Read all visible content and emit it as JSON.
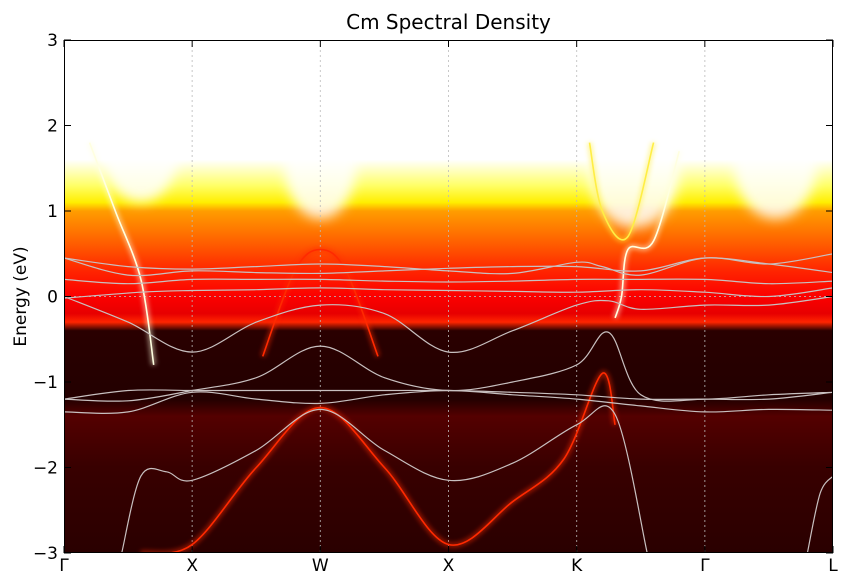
{
  "chart_data": {
    "type": "heatmap",
    "title": "Cm Spectral Density",
    "xlabel": "",
    "ylabel": "Energy (eV)",
    "ylim": [
      -3,
      3
    ],
    "yticks": [
      -3,
      -2,
      -1,
      0,
      1,
      2,
      3
    ],
    "ytick_labels": [
      "−3",
      "−2",
      "−1",
      "0",
      "1",
      "2",
      "3"
    ],
    "xticks": [
      {
        "pos": 0.0,
        "label": "Γ"
      },
      {
        "pos": 1.0,
        "label": "X"
      },
      {
        "pos": 2.0,
        "label": "W"
      },
      {
        "pos": 3.0,
        "label": "X"
      },
      {
        "pos": 4.0,
        "label": "K"
      },
      {
        "pos": 5.0,
        "label": "Γ"
      },
      {
        "pos": 6.0,
        "label": "L"
      }
    ],
    "xlim": [
      0,
      6
    ],
    "fermi_level": 0,
    "grid": "vertical dotted at high-symmetry points; horizontal dotted at E=0",
    "colormap": "hot (black → red → yellow → white)",
    "spectral_intensity_by_energy": [
      {
        "e": 3.0,
        "i": 1.0
      },
      {
        "e": 1.6,
        "i": 1.0
      },
      {
        "e": 1.3,
        "i": 0.85
      },
      {
        "e": 1.1,
        "i": 0.72
      },
      {
        "e": 1.0,
        "i": 0.6
      },
      {
        "e": 0.6,
        "i": 0.5
      },
      {
        "e": 0.3,
        "i": 0.42
      },
      {
        "e": 0.0,
        "i": 0.36
      },
      {
        "e": -0.2,
        "i": 0.33
      },
      {
        "e": -0.3,
        "i": 0.42
      },
      {
        "e": -0.4,
        "i": 0.06
      },
      {
        "e": -1.2,
        "i": 0.05
      },
      {
        "e": -1.4,
        "i": 0.12
      },
      {
        "e": -1.7,
        "i": 0.1
      },
      {
        "e": -2.0,
        "i": 0.08
      },
      {
        "e": -3.0,
        "i": 0.06
      }
    ],
    "lda_bands": [
      {
        "x": [
          0,
          0.6,
          1.0,
          1.5,
          2.0,
          2.5,
          3.0,
          3.5,
          4.0,
          4.5,
          5.0,
          5.5,
          6.0
        ],
        "y": [
          -0.02,
          0.05,
          0.07,
          0.08,
          0.1,
          0.08,
          0.07,
          0.06,
          0.05,
          0.08,
          0.05,
          0.0,
          0.1
        ]
      },
      {
        "x": [
          0,
          0.5,
          1.0,
          1.5,
          2.0,
          2.5,
          3.0,
          3.5,
          4.0,
          4.4,
          5.0,
          5.5,
          6.0
        ],
        "y": [
          0.2,
          0.15,
          0.2,
          0.2,
          0.2,
          0.18,
          0.17,
          0.18,
          0.2,
          0.2,
          0.2,
          0.15,
          0.18
        ]
      },
      {
        "x": [
          0,
          0.5,
          1.0,
          1.5,
          2.0,
          2.5,
          3.0,
          3.5,
          4.0,
          4.5,
          5.0,
          5.5,
          6.0
        ],
        "y": [
          0.45,
          0.25,
          0.3,
          0.28,
          0.27,
          0.3,
          0.33,
          0.35,
          0.35,
          0.3,
          0.45,
          0.38,
          0.28
        ]
      },
      {
        "x": [
          0,
          0.5,
          1.0,
          1.5,
          2.0,
          2.5,
          3.0,
          3.5,
          4.0,
          4.2,
          4.5,
          5.0,
          5.5,
          6.0
        ],
        "y": [
          0.45,
          0.35,
          0.32,
          0.35,
          0.38,
          0.35,
          0.3,
          0.27,
          0.4,
          0.35,
          0.25,
          0.45,
          0.38,
          0.5
        ]
      },
      {
        "x": [
          0,
          0.5,
          1.0,
          1.5,
          2.0,
          2.5,
          3.0,
          3.5,
          4.0,
          4.25,
          4.5,
          5.0,
          5.5,
          6.0
        ],
        "y": [
          0.0,
          -0.3,
          -0.65,
          -0.3,
          -0.1,
          -0.2,
          -0.65,
          -0.4,
          -0.1,
          -0.05,
          -0.15,
          -0.1,
          -0.1,
          0.0
        ]
      },
      {
        "x": [
          0,
          0.5,
          1.0,
          1.5,
          2.0,
          2.5,
          3.0,
          3.5,
          4.0,
          4.25,
          4.5,
          5.0,
          5.5,
          6.0
        ],
        "y": [
          -1.2,
          -1.22,
          -1.1,
          -0.95,
          -0.58,
          -0.95,
          -1.1,
          -1.0,
          -0.8,
          -0.42,
          -1.15,
          -1.2,
          -1.15,
          -1.12
        ]
      },
      {
        "x": [
          0,
          0.5,
          1.0,
          1.5,
          2.0,
          2.5,
          3.0,
          3.5,
          4.0,
          4.5,
          5.0,
          5.5,
          6.0
        ],
        "y": [
          -1.2,
          -1.1,
          -1.1,
          -1.1,
          -1.1,
          -1.1,
          -1.1,
          -1.12,
          -1.15,
          -1.2,
          -1.2,
          -1.2,
          -1.12
        ]
      },
      {
        "x": [
          0,
          0.5,
          1.0,
          1.5,
          2.0,
          2.5,
          3.0,
          3.5,
          4.0,
          4.5,
          5.0,
          5.5,
          6.0
        ],
        "y": [
          -1.35,
          -1.35,
          -1.12,
          -1.2,
          -1.25,
          -1.15,
          -1.1,
          -1.15,
          -1.2,
          -1.28,
          -1.35,
          -1.32,
          -1.33
        ]
      },
      {
        "x": [
          0.45,
          0.6,
          0.8,
          1.0,
          1.5,
          2.0,
          2.5,
          3.0,
          3.5,
          4.0,
          4.3,
          4.55
        ],
        "y": [
          -3.0,
          -2.1,
          -2.05,
          -2.15,
          -1.8,
          -1.32,
          -1.8,
          -2.15,
          -1.95,
          -1.5,
          -1.38,
          -3.0
        ]
      },
      {
        "x": [
          5.8,
          5.9,
          6.0
        ],
        "y": [
          -3.0,
          -2.3,
          -2.1
        ]
      }
    ],
    "qp_bands": [
      {
        "x": [
          0.2,
          0.4,
          0.6,
          0.7
        ],
        "y": [
          1.8,
          1.0,
          0.2,
          -0.8
        ],
        "c": "bright"
      },
      {
        "x": [
          1.55,
          1.8,
          2.0,
          2.2,
          2.45
        ],
        "y": [
          -0.7,
          0.3,
          0.55,
          0.3,
          -0.7
        ],
        "c": "red"
      },
      {
        "x": [
          0.6,
          1.0,
          1.5,
          2.0,
          2.5,
          3.0,
          3.5,
          3.9,
          4.2,
          4.3
        ],
        "y": [
          -3.0,
          -2.9,
          -2.0,
          -1.3,
          -2.0,
          -2.9,
          -2.4,
          -1.9,
          -0.9,
          -1.5
        ],
        "c": "red"
      },
      {
        "x": [
          4.3,
          4.35,
          4.4,
          4.6,
          4.8
        ],
        "y": [
          -0.25,
          0.0,
          0.55,
          0.65,
          1.7
        ],
        "c": "bright"
      },
      {
        "x": [
          4.1,
          4.2,
          4.4,
          4.6
        ],
        "y": [
          1.8,
          1.0,
          0.7,
          1.8
        ],
        "c": "yellow"
      }
    ]
  }
}
